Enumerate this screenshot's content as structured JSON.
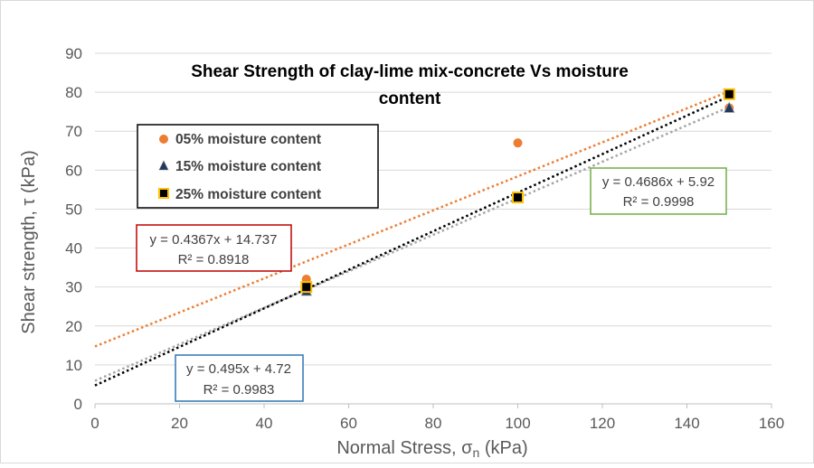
{
  "chart_data": {
    "type": "scatter",
    "title": "Shear Strength of clay-lime mix-concrete   Vs moisture content",
    "title_lines": [
      "Shear Strength of clay-lime mix-concrete   Vs moisture",
      "content"
    ],
    "xlabel": "Normal Stress, σn (kPa)",
    "xlabel_main": "Normal Stress, σ",
    "xlabel_sub": "n",
    "xlabel_tail": " (kPa)",
    "ylabel": "Shear strength, τ (kPa)",
    "xlim": [
      0,
      160
    ],
    "ylim": [
      0,
      90
    ],
    "x_ticks": [
      "0",
      "20",
      "40",
      "60",
      "80",
      "100",
      "120",
      "140",
      "160"
    ],
    "y_ticks": [
      "0",
      "10",
      "20",
      "30",
      "40",
      "50",
      "60",
      "70",
      "80",
      "90"
    ],
    "grid": "horizontal",
    "legend_position": "upper-left inside",
    "series": [
      {
        "name": "05% moisture content",
        "marker": "circle",
        "color": "#ED7D31",
        "trend_color": "#ED7D31",
        "x": [
          50,
          100,
          150
        ],
        "y": [
          32,
          67,
          76
        ],
        "trendline": {
          "slope": 0.4367,
          "intercept": 14.737,
          "equation": "y = 0.4367x + 14.737",
          "r2": "R² = 0.8918",
          "box_color": "#C00000"
        }
      },
      {
        "name": "15% moisture content",
        "marker": "triangle",
        "color": "#1F3864",
        "trend_color": "#A6A6A6",
        "x": [
          50,
          100,
          150
        ],
        "y": [
          29,
          53,
          76
        ],
        "trendline": {
          "slope": 0.4686,
          "intercept": 5.92,
          "equation": "y = 0.4686x + 5.92",
          "r2": "R² = 0.9998",
          "box_color": "#70AD47"
        }
      },
      {
        "name": "25% moisture content",
        "marker": "square",
        "color": "#000000",
        "edge_color": "#FFC000",
        "trend_color": "#000000",
        "x": [
          50,
          100,
          150
        ],
        "y": [
          30,
          53,
          79.5
        ],
        "trendline": {
          "slope": 0.495,
          "intercept": 4.72,
          "equation": "y = 0.495x + 4.72",
          "r2": "R² = 0.9983",
          "box_color": "#2E75B6"
        }
      }
    ]
  }
}
